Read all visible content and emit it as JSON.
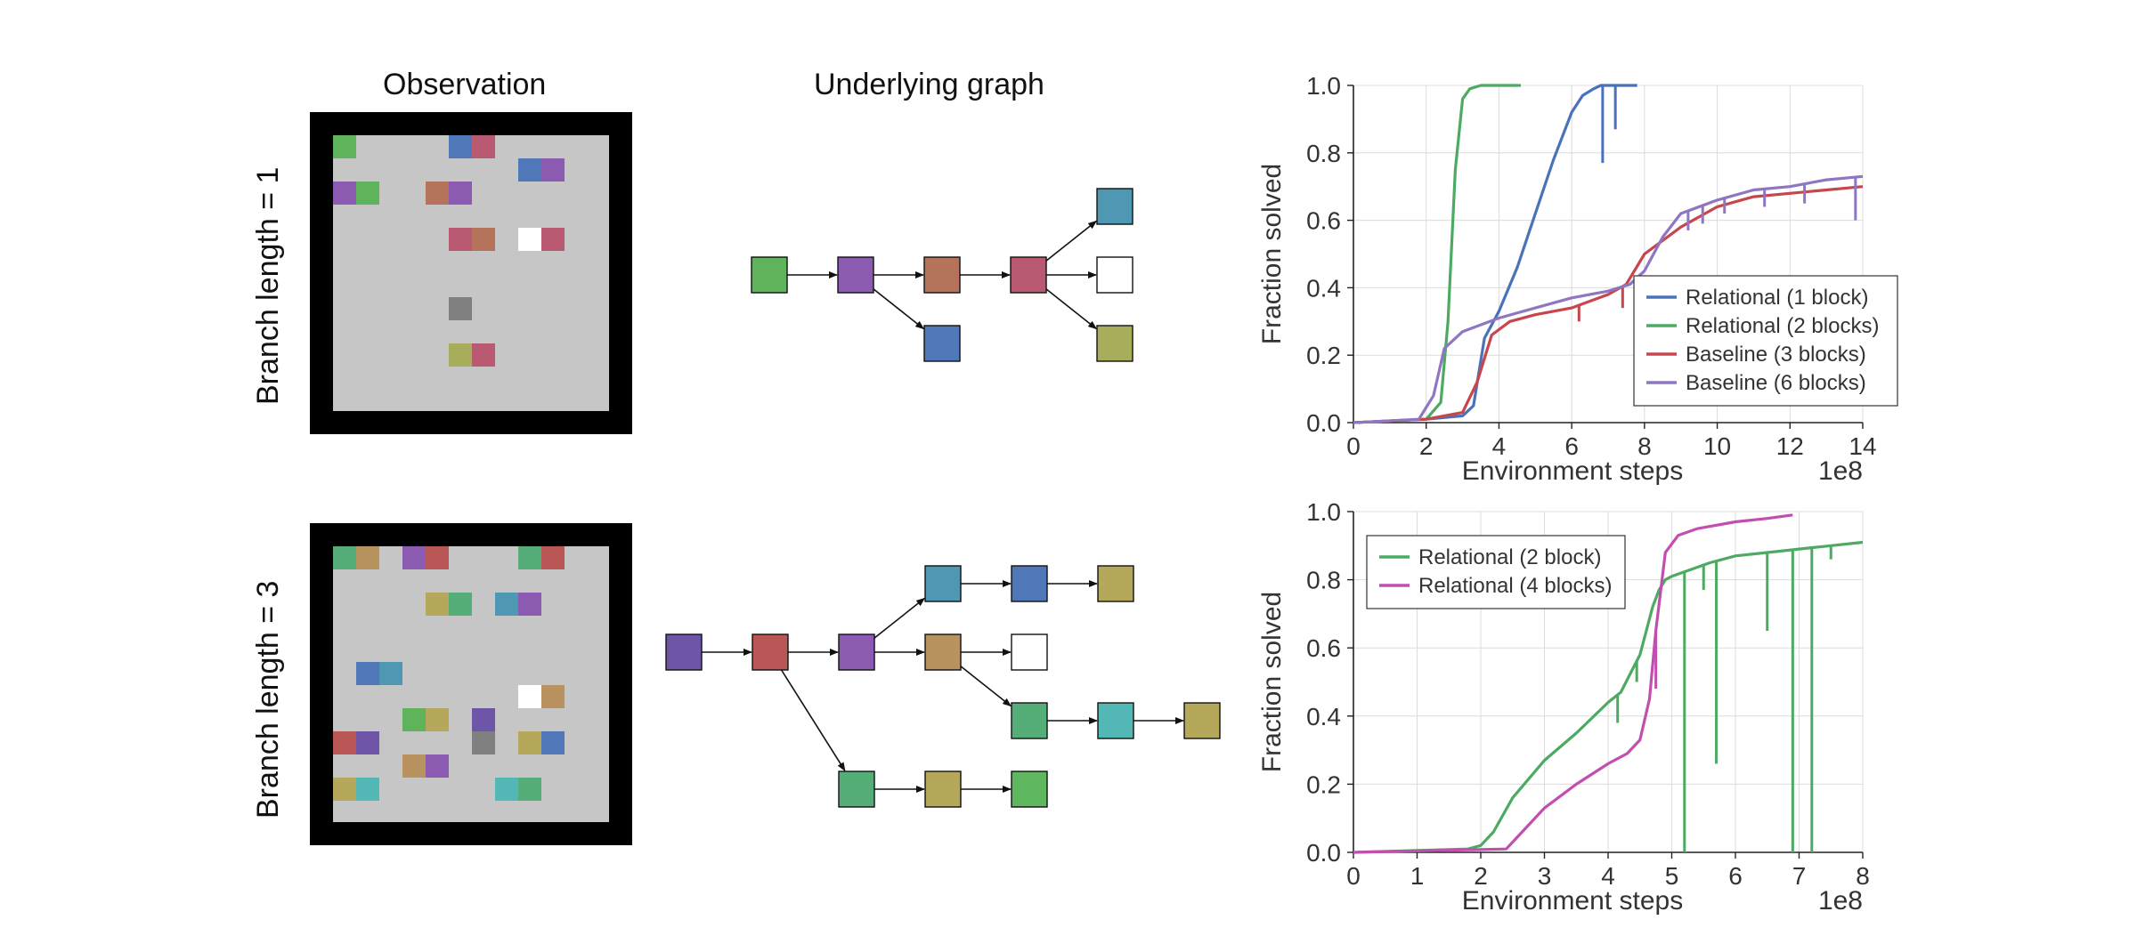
{
  "titles": {
    "observation": "Observation",
    "graph": "Underlying graph"
  },
  "rows": [
    {
      "label": "Branch length = 1"
    },
    {
      "label": "Branch length = 3"
    }
  ],
  "colors": {
    "green": "#5fb35a",
    "purple": "#8a5bb0",
    "brown": "#b4735a",
    "rose": "#b95a72",
    "blue": "#5077b8",
    "teal": "#4f98b4",
    "white": "#ffffff",
    "olive": "#a8ad5c",
    "gray": "#808080",
    "violet": "#6f55a8",
    "red": "#b95656",
    "tan": "#b8925f",
    "khaki": "#b5a85a",
    "seagreen": "#55ad78",
    "cyan": "#52b7b5",
    "medgreen": "#5fb860"
  },
  "observations": [
    {
      "tiles": [
        [
          "green",
          0,
          0
        ],
        [
          "blue",
          5,
          0
        ],
        [
          "rose",
          6,
          0
        ],
        [
          "blue",
          8,
          1
        ],
        [
          "purple",
          9,
          1
        ],
        [
          "purple",
          0,
          2
        ],
        [
          "green",
          1,
          2
        ],
        [
          "brown",
          4,
          2
        ],
        [
          "purple",
          5,
          2
        ],
        [
          "rose",
          5,
          4
        ],
        [
          "brown",
          6,
          4
        ],
        [
          "white",
          8,
          4
        ],
        [
          "rose",
          9,
          4
        ],
        [
          "gray",
          5,
          7
        ],
        [
          "olive",
          5,
          9
        ],
        [
          "rose",
          6,
          9
        ]
      ]
    },
    {
      "tiles": [
        [
          "seagreen",
          0,
          0
        ],
        [
          "tan",
          1,
          0
        ],
        [
          "purple",
          3,
          0
        ],
        [
          "red",
          4,
          0
        ],
        [
          "seagreen",
          8,
          0
        ],
        [
          "red",
          9,
          0
        ],
        [
          "khaki",
          4,
          2
        ],
        [
          "seagreen",
          5,
          2
        ],
        [
          "teal",
          7,
          2
        ],
        [
          "purple",
          8,
          2
        ],
        [
          "blue",
          1,
          5
        ],
        [
          "teal",
          2,
          5
        ],
        [
          "white",
          8,
          6
        ],
        [
          "tan",
          9,
          6
        ],
        [
          "green",
          3,
          7
        ],
        [
          "khaki",
          4,
          7
        ],
        [
          "violet",
          6,
          7
        ],
        [
          "red",
          0,
          8
        ],
        [
          "violet",
          1,
          8
        ],
        [
          "gray",
          6,
          8
        ],
        [
          "khaki",
          8,
          8
        ],
        [
          "blue",
          9,
          8
        ],
        [
          "tan",
          3,
          9
        ],
        [
          "purple",
          4,
          9
        ],
        [
          "khaki",
          0,
          10
        ],
        [
          "cyan",
          1,
          10
        ],
        [
          "cyan",
          7,
          10
        ],
        [
          "seagreen",
          8,
          10
        ]
      ]
    }
  ],
  "graphs": [
    {
      "nodes": [
        [
          "green",
          0,
          1
        ],
        [
          "purple",
          1,
          1
        ],
        [
          "brown",
          2,
          1
        ],
        [
          "blue",
          2,
          2
        ],
        [
          "rose",
          3,
          1
        ],
        [
          "teal",
          4,
          0
        ],
        [
          "white",
          4,
          1
        ],
        [
          "olive",
          4,
          2
        ]
      ],
      "edges": [
        [
          0,
          1
        ],
        [
          1,
          2
        ],
        [
          1,
          3
        ],
        [
          2,
          4
        ],
        [
          4,
          5
        ],
        [
          4,
          6
        ],
        [
          4,
          7
        ]
      ]
    },
    {
      "nodes": [
        [
          "violet",
          0,
          1
        ],
        [
          "red",
          1,
          1
        ],
        [
          "purple",
          2,
          1
        ],
        [
          "teal",
          3,
          0
        ],
        [
          "blue",
          4,
          0
        ],
        [
          "khaki",
          5,
          0
        ],
        [
          "tan",
          3,
          1
        ],
        [
          "white",
          4,
          1
        ],
        [
          "seagreen",
          4,
          2
        ],
        [
          "cyan",
          5,
          2
        ],
        [
          "khaki",
          6,
          2
        ],
        [
          "seagreen",
          2,
          3
        ],
        [
          "khaki",
          3,
          3
        ],
        [
          "medgreen",
          4,
          3
        ]
      ],
      "edges": [
        [
          0,
          1
        ],
        [
          1,
          2
        ],
        [
          2,
          3
        ],
        [
          3,
          4
        ],
        [
          4,
          5
        ],
        [
          2,
          6
        ],
        [
          6,
          7
        ],
        [
          6,
          8
        ],
        [
          8,
          9
        ],
        [
          9,
          10
        ],
        [
          1,
          11
        ],
        [
          11,
          12
        ],
        [
          12,
          13
        ]
      ]
    }
  ],
  "chart_data": [
    {
      "type": "line",
      "xlabel": "Environment steps",
      "ylabel": "Fraction solved",
      "x_multiplier": "1e8",
      "xlim": [
        0,
        14
      ],
      "ylim": [
        0,
        1.0
      ],
      "xticks": [
        "0",
        "2",
        "4",
        "6",
        "8",
        "10",
        "12",
        "14"
      ],
      "yticks": [
        "0.0",
        "0.2",
        "0.4",
        "0.6",
        "0.8",
        "1.0"
      ],
      "grid": true,
      "legend_position": "lower-right",
      "series": [
        {
          "name": "Relational (1 block)",
          "color": "#4a72b8",
          "x": [
            0,
            2,
            3,
            3.3,
            3.6,
            4,
            4.5,
            5,
            5.5,
            6,
            6.3,
            6.6,
            6.8,
            6.9,
            7.1,
            7.5,
            7.8
          ],
          "y": [
            0,
            0.01,
            0.02,
            0.05,
            0.25,
            0.33,
            0.46,
            0.62,
            0.78,
            0.92,
            0.97,
            0.99,
            1.0,
            1.0,
            1.0,
            1.0,
            1.0
          ],
          "dips": [
            [
              6.85,
              0.77
            ],
            [
              7.2,
              0.87
            ]
          ]
        },
        {
          "name": "Relational (2 blocks)",
          "color": "#4caa62",
          "x": [
            0,
            2,
            2.4,
            2.6,
            2.8,
            3.0,
            3.2,
            3.5,
            4.0,
            4.6
          ],
          "y": [
            0,
            0.01,
            0.06,
            0.3,
            0.75,
            0.96,
            0.99,
            1.0,
            1.0,
            1.0
          ]
        },
        {
          "name": "Baseline (3 blocks)",
          "color": "#c7464d",
          "x": [
            0,
            2,
            3,
            3.4,
            3.8,
            4.3,
            5,
            6,
            7,
            7.5,
            8,
            9,
            10,
            11,
            12,
            13,
            14
          ],
          "y": [
            0,
            0.01,
            0.03,
            0.12,
            0.26,
            0.3,
            0.32,
            0.34,
            0.38,
            0.41,
            0.5,
            0.58,
            0.64,
            0.67,
            0.68,
            0.69,
            0.7
          ],
          "dips": [
            [
              6.2,
              0.3
            ],
            [
              7.4,
              0.34
            ]
          ]
        },
        {
          "name": "Baseline (6 blocks)",
          "color": "#8e76c2",
          "x": [
            0,
            1.8,
            2.2,
            2.5,
            3,
            4,
            5,
            6,
            7,
            7.6,
            8,
            8.5,
            9,
            10,
            11,
            12,
            13,
            14
          ],
          "y": [
            0,
            0.01,
            0.08,
            0.22,
            0.27,
            0.31,
            0.34,
            0.37,
            0.39,
            0.41,
            0.45,
            0.55,
            0.62,
            0.66,
            0.69,
            0.7,
            0.72,
            0.73
          ],
          "dips": [
            [
              9.2,
              0.57
            ],
            [
              9.6,
              0.59
            ],
            [
              10.2,
              0.62
            ],
            [
              11.3,
              0.64
            ],
            [
              12.4,
              0.65
            ],
            [
              13.8,
              0.6
            ]
          ]
        }
      ]
    },
    {
      "type": "line",
      "xlabel": "Environment steps",
      "ylabel": "Fraction solved",
      "x_multiplier": "1e8",
      "xlim": [
        0,
        8
      ],
      "ylim": [
        0,
        1.0
      ],
      "xticks": [
        "0",
        "1",
        "2",
        "3",
        "4",
        "5",
        "6",
        "7",
        "8"
      ],
      "yticks": [
        "0.0",
        "0.2",
        "0.4",
        "0.6",
        "0.8",
        "1.0"
      ],
      "grid": true,
      "legend_position": "upper-left",
      "series": [
        {
          "name": "Relational (2 block)",
          "color": "#4caa62",
          "x": [
            0,
            1.8,
            2.0,
            2.2,
            2.5,
            3,
            3.5,
            4,
            4.2,
            4.5,
            4.7,
            4.8,
            4.9,
            5.0,
            5.3,
            5.6,
            6,
            6.5,
            7,
            7.5,
            8
          ],
          "y": [
            0,
            0.01,
            0.02,
            0.06,
            0.16,
            0.27,
            0.35,
            0.44,
            0.47,
            0.58,
            0.72,
            0.77,
            0.8,
            0.81,
            0.83,
            0.85,
            0.87,
            0.88,
            0.89,
            0.9,
            0.91
          ],
          "dips": [
            [
              4.15,
              0.38
            ],
            [
              4.45,
              0.5
            ],
            [
              5.2,
              0.0
            ],
            [
              5.5,
              0.77
            ],
            [
              5.7,
              0.26
            ],
            [
              6.5,
              0.65
            ],
            [
              6.9,
              0.0
            ],
            [
              7.2,
              0.0
            ],
            [
              7.5,
              0.86
            ]
          ]
        },
        {
          "name": "Relational (4 blocks)",
          "color": "#c24fb0",
          "x": [
            0,
            2.4,
            2.6,
            3,
            3.5,
            4,
            4.3,
            4.5,
            4.65,
            4.75,
            4.9,
            5.1,
            5.4,
            6,
            6.5,
            6.9
          ],
          "y": [
            0,
            0.01,
            0.05,
            0.13,
            0.2,
            0.26,
            0.29,
            0.33,
            0.45,
            0.65,
            0.88,
            0.93,
            0.95,
            0.97,
            0.98,
            0.99
          ],
          "dips": [
            [
              4.75,
              0.48
            ]
          ]
        }
      ]
    }
  ]
}
